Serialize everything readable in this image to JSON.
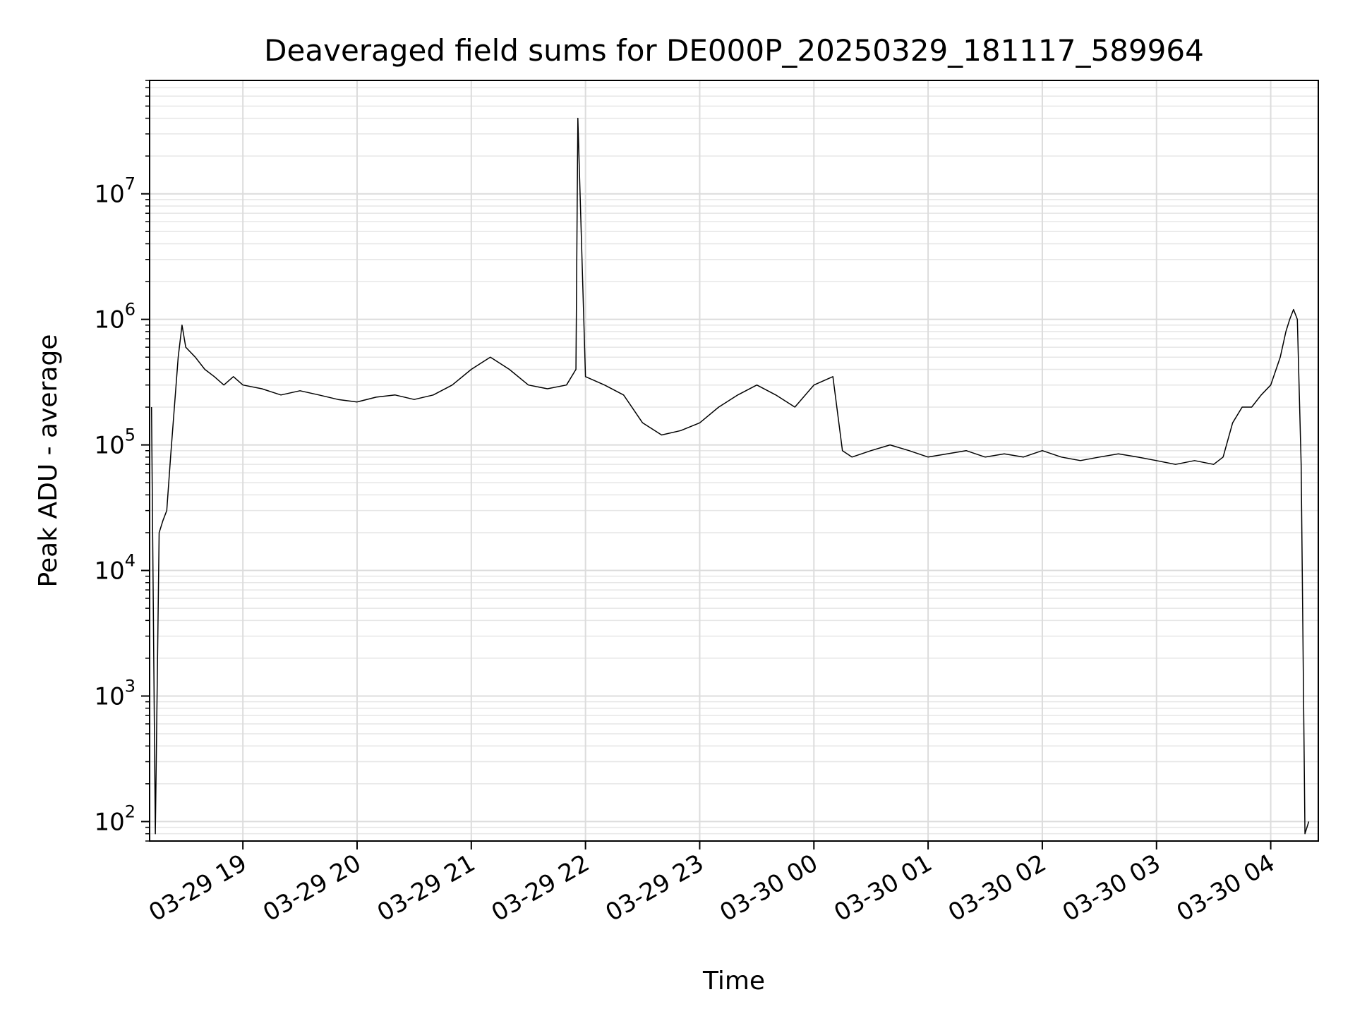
{
  "chart_data": {
    "type": "line",
    "title": "Deaveraged field sums for DE000P_20250329_181117_589964",
    "xlabel": "Time",
    "ylabel": "Peak ADU - average",
    "yscale": "log",
    "ylim": [
      70,
      80000000
    ],
    "xlim": [
      "2025-03-29 18:11",
      "2025-03-30 04:25"
    ],
    "grid": true,
    "x_ticks": [
      "03-29 19",
      "03-29 20",
      "03-29 21",
      "03-29 22",
      "03-29 23",
      "03-30 00",
      "03-30 01",
      "03-30 02",
      "03-30 03",
      "03-30 04"
    ],
    "x_tick_times": [
      "2025-03-29 19:00",
      "2025-03-29 20:00",
      "2025-03-29 21:00",
      "2025-03-29 22:00",
      "2025-03-29 23:00",
      "2025-03-30 00:00",
      "2025-03-30 01:00",
      "2025-03-30 02:00",
      "2025-03-30 03:00",
      "2025-03-30 04:00"
    ],
    "y_ticks": [
      {
        "base": "10",
        "exp": "2",
        "value": 100
      },
      {
        "base": "10",
        "exp": "3",
        "value": 1000
      },
      {
        "base": "10",
        "exp": "4",
        "value": 10000
      },
      {
        "base": "10",
        "exp": "5",
        "value": 100000
      },
      {
        "base": "10",
        "exp": "6",
        "value": 1000000
      },
      {
        "base": "10",
        "exp": "7",
        "value": 10000000
      }
    ],
    "series": [
      {
        "color": "#000000",
        "x": [
          "2025-03-29 18:12",
          "2025-03-29 18:14",
          "2025-03-29 18:16",
          "2025-03-29 18:18",
          "2025-03-29 18:20",
          "2025-03-29 18:22",
          "2025-03-29 18:24",
          "2025-03-29 18:26",
          "2025-03-29 18:28",
          "2025-03-29 18:30",
          "2025-03-29 18:35",
          "2025-03-29 18:40",
          "2025-03-29 18:45",
          "2025-03-29 18:50",
          "2025-03-29 18:55",
          "2025-03-29 19:00",
          "2025-03-29 19:10",
          "2025-03-29 19:20",
          "2025-03-29 19:30",
          "2025-03-29 19:40",
          "2025-03-29 19:50",
          "2025-03-29 20:00",
          "2025-03-29 20:10",
          "2025-03-29 20:20",
          "2025-03-29 20:30",
          "2025-03-29 20:40",
          "2025-03-29 20:50",
          "2025-03-29 21:00",
          "2025-03-29 21:10",
          "2025-03-29 21:20",
          "2025-03-29 21:30",
          "2025-03-29 21:40",
          "2025-03-29 21:50",
          "2025-03-29 21:55",
          "2025-03-29 21:56",
          "2025-03-29 22:00",
          "2025-03-29 22:10",
          "2025-03-29 22:20",
          "2025-03-29 22:30",
          "2025-03-29 22:40",
          "2025-03-29 22:50",
          "2025-03-29 23:00",
          "2025-03-29 23:10",
          "2025-03-29 23:20",
          "2025-03-29 23:30",
          "2025-03-29 23:40",
          "2025-03-29 23:50",
          "2025-03-30 00:00",
          "2025-03-30 00:10",
          "2025-03-30 00:15",
          "2025-03-30 00:20",
          "2025-03-30 00:30",
          "2025-03-30 00:40",
          "2025-03-30 00:50",
          "2025-03-30 01:00",
          "2025-03-30 01:10",
          "2025-03-30 01:20",
          "2025-03-30 01:30",
          "2025-03-30 01:40",
          "2025-03-30 01:50",
          "2025-03-30 02:00",
          "2025-03-30 02:10",
          "2025-03-30 02:20",
          "2025-03-30 02:30",
          "2025-03-30 02:40",
          "2025-03-30 02:50",
          "2025-03-30 03:00",
          "2025-03-30 03:10",
          "2025-03-30 03:20",
          "2025-03-30 03:30",
          "2025-03-30 03:35",
          "2025-03-30 03:40",
          "2025-03-30 03:45",
          "2025-03-30 03:50",
          "2025-03-30 03:55",
          "2025-03-30 04:00",
          "2025-03-30 04:05",
          "2025-03-30 04:08",
          "2025-03-30 04:10",
          "2025-03-30 04:12",
          "2025-03-30 04:14",
          "2025-03-30 04:16",
          "2025-03-30 04:18",
          "2025-03-30 04:20"
        ],
        "y": [
          200000,
          80,
          20000,
          25000,
          30000,
          80000,
          200000,
          500000,
          900000,
          600000,
          500000,
          400000,
          350000,
          300000,
          350000,
          300000,
          280000,
          250000,
          270000,
          250000,
          230000,
          220000,
          240000,
          250000,
          230000,
          250000,
          300000,
          400000,
          500000,
          400000,
          300000,
          280000,
          300000,
          400000,
          40000000,
          350000,
          300000,
          250000,
          150000,
          120000,
          130000,
          150000,
          200000,
          250000,
          300000,
          250000,
          200000,
          300000,
          350000,
          90000,
          80000,
          90000,
          100000,
          90000,
          80000,
          85000,
          90000,
          80000,
          85000,
          80000,
          90000,
          80000,
          75000,
          80000,
          85000,
          80000,
          75000,
          70000,
          75000,
          70000,
          80000,
          150000,
          200000,
          200000,
          250000,
          300000,
          500000,
          800000,
          1000000,
          1200000,
          1000000,
          70000,
          80,
          100
        ]
      }
    ]
  }
}
